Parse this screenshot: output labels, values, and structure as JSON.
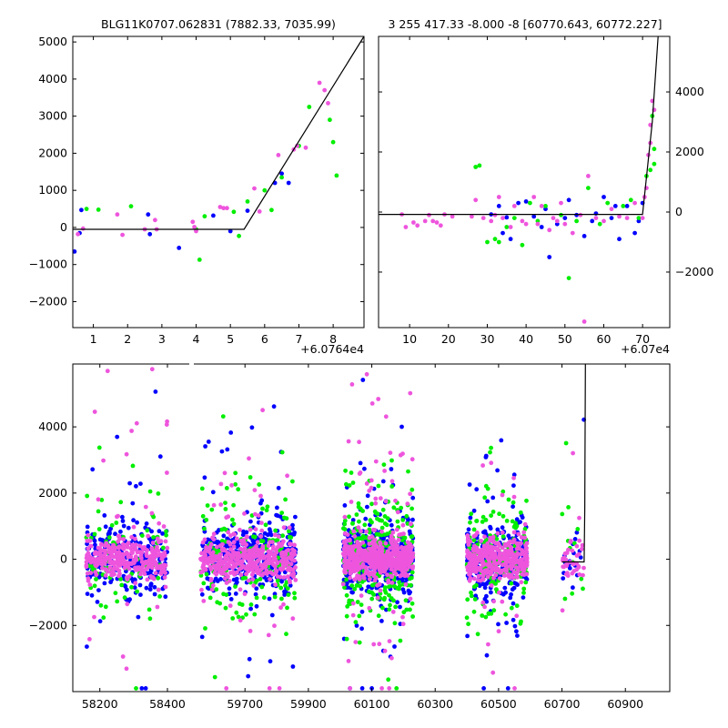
{
  "colors": {
    "blue": "#0000ff",
    "green": "#00ee00",
    "magenta": "#ee55dd",
    "line": "#000000"
  },
  "chart_data": [
    {
      "type": "scatter",
      "title": "BLG11K0707.062831 (7882.33, 7035.99)",
      "offset_label": "+6.0764e4",
      "xlim": [
        0.4,
        8.9
      ],
      "ylim": [
        -2700,
        5150
      ],
      "xticks": [
        "1",
        "2",
        "3",
        "4",
        "5",
        "6",
        "7",
        "8"
      ],
      "xtick_values": [
        1,
        2,
        3,
        4,
        5,
        6,
        7,
        8
      ],
      "yticks": [
        "5000",
        "4000",
        "3000",
        "2000",
        "1000",
        "0",
        "−1000",
        "−2000"
      ],
      "ytick_values": [
        5000,
        4000,
        3000,
        2000,
        1000,
        0,
        -1000,
        -2000
      ],
      "ytick_side": "left",
      "model_line": [
        [
          0.4,
          -50
        ],
        [
          5.4,
          -50
        ],
        [
          8.9,
          5150
        ]
      ],
      "series": [
        {
          "color": "blue",
          "points": [
            [
              0.45,
              -650
            ],
            [
              0.6,
              -150
            ],
            [
              0.65,
              470
            ],
            [
              2.6,
              350
            ],
            [
              2.65,
              -180
            ],
            [
              3.5,
              -550
            ],
            [
              4.5,
              320
            ],
            [
              5.0,
              -100
            ],
            [
              5.5,
              450
            ],
            [
              6.3,
              1200
            ],
            [
              6.5,
              1450
            ],
            [
              6.7,
              1200
            ]
          ]
        },
        {
          "color": "green",
          "points": [
            [
              0.8,
              500
            ],
            [
              1.15,
              480
            ],
            [
              2.1,
              570
            ],
            [
              4.0,
              -50
            ],
            [
              4.1,
              -870
            ],
            [
              4.25,
              300
            ],
            [
              5.25,
              -230
            ],
            [
              5.5,
              700
            ],
            [
              6.2,
              470
            ],
            [
              6.5,
              1350
            ],
            [
              7.0,
              2200
            ],
            [
              7.3,
              3250
            ],
            [
              7.9,
              2900
            ],
            [
              8.0,
              2300
            ],
            [
              8.1,
              1400
            ],
            [
              5.1,
              420
            ],
            [
              6.0,
              1000
            ]
          ]
        },
        {
          "color": "magenta",
          "points": [
            [
              0.55,
              -180
            ],
            [
              0.7,
              -30
            ],
            [
              1.7,
              350
            ],
            [
              1.85,
              -200
            ],
            [
              2.5,
              -50
            ],
            [
              2.8,
              200
            ],
            [
              2.85,
              -50
            ],
            [
              3.9,
              150
            ],
            [
              3.95,
              10
            ],
            [
              4.0,
              -100
            ],
            [
              4.7,
              550
            ],
            [
              4.8,
              520
            ],
            [
              4.9,
              520
            ],
            [
              5.7,
              1050
            ],
            [
              5.85,
              430
            ],
            [
              6.4,
              1950
            ],
            [
              6.85,
              2100
            ],
            [
              6.95,
              2200
            ],
            [
              7.2,
              2150
            ],
            [
              7.6,
              3900
            ],
            [
              7.75,
              3700
            ],
            [
              7.85,
              3350
            ]
          ]
        }
      ]
    },
    {
      "type": "scatter",
      "title": "3 255 417.33 -8.000 -8 [60770.643, 60772.227]",
      "offset_label": "+6.07e4",
      "xlim": [
        2,
        77
      ],
      "ylim": [
        -3850,
        5850
      ],
      "xticks": [
        "10",
        "20",
        "30",
        "40",
        "50",
        "60",
        "70"
      ],
      "xtick_values": [
        10,
        20,
        30,
        40,
        50,
        60,
        70
      ],
      "yticks": [
        "4000",
        "2000",
        "0",
        "−2000"
      ],
      "ytick_values": [
        4000,
        2000,
        0,
        -2000
      ],
      "ytick_side": "right",
      "model_line": [
        [
          2,
          -80
        ],
        [
          70,
          -80
        ],
        [
          72.5,
          3000
        ],
        [
          74,
          5850
        ]
      ],
      "series": [
        {
          "color": "blue",
          "points": [
            [
              31,
              -80
            ],
            [
              34,
              -700
            ],
            [
              35,
              -180
            ],
            [
              36,
              -900
            ],
            [
              38,
              300
            ],
            [
              40,
              350
            ],
            [
              42,
              -150
            ],
            [
              44,
              -500
            ],
            [
              46,
              -1500
            ],
            [
              48,
              -400
            ],
            [
              50,
              -200
            ],
            [
              51,
              400
            ],
            [
              53,
              -100
            ],
            [
              55,
              -800
            ],
            [
              57,
              -300
            ],
            [
              60,
              500
            ],
            [
              62,
              -200
            ],
            [
              64,
              -900
            ],
            [
              66,
              200
            ],
            [
              68,
              -700
            ],
            [
              70,
              300
            ],
            [
              33,
              200
            ],
            [
              45,
              100
            ],
            [
              58,
              -50
            ],
            [
              63,
              200
            ],
            [
              69,
              -300
            ]
          ]
        },
        {
          "color": "green",
          "points": [
            [
              27,
              1500
            ],
            [
              28,
              1550
            ],
            [
              30,
              -1000
            ],
            [
              32,
              -900
            ],
            [
              33,
              -1000
            ],
            [
              35,
              -500
            ],
            [
              37,
              -200
            ],
            [
              39,
              -1100
            ],
            [
              41,
              300
            ],
            [
              43,
              -300
            ],
            [
              45,
              200
            ],
            [
              49,
              -100
            ],
            [
              51,
              -2200
            ],
            [
              53,
              -300
            ],
            [
              56,
              800
            ],
            [
              59,
              -400
            ],
            [
              61,
              300
            ],
            [
              65,
              200
            ],
            [
              67,
              400
            ],
            [
              69,
              -200
            ],
            [
              71,
              1200
            ],
            [
              72,
              1400
            ],
            [
              73,
              1600
            ],
            [
              72.5,
              3200
            ],
            [
              73,
              2100
            ]
          ]
        },
        {
          "color": "magenta",
          "points": [
            [
              8,
              -80
            ],
            [
              9,
              -500
            ],
            [
              11,
              -350
            ],
            [
              12,
              -450
            ],
            [
              14,
              -300
            ],
            [
              15,
              -100
            ],
            [
              16,
              -300
            ],
            [
              17,
              -350
            ],
            [
              18,
              -450
            ],
            [
              19,
              -80
            ],
            [
              21,
              -150
            ],
            [
              26,
              -150
            ],
            [
              27,
              400
            ],
            [
              29,
              -200
            ],
            [
              31,
              -300
            ],
            [
              32,
              -100
            ],
            [
              33,
              500
            ],
            [
              34,
              -200
            ],
            [
              36,
              -500
            ],
            [
              37,
              200
            ],
            [
              39,
              -300
            ],
            [
              40,
              -400
            ],
            [
              42,
              500
            ],
            [
              43,
              -400
            ],
            [
              44,
              200
            ],
            [
              46,
              -600
            ],
            [
              47,
              -200
            ],
            [
              48,
              -300
            ],
            [
              49,
              300
            ],
            [
              50,
              -400
            ],
            [
              52,
              -700
            ],
            [
              54,
              -100
            ],
            [
              55,
              -3650
            ],
            [
              56,
              1200
            ],
            [
              58,
              -200
            ],
            [
              60,
              -300
            ],
            [
              62,
              100
            ],
            [
              64,
              -150
            ],
            [
              66,
              -200
            ],
            [
              68,
              300
            ],
            [
              70,
              -200
            ],
            [
              71,
              800
            ],
            [
              72,
              2300
            ],
            [
              72.5,
              3700
            ],
            [
              73,
              3400
            ],
            [
              72,
              2900
            ],
            [
              71.5,
              1900
            ],
            [
              70.5,
              500
            ]
          ]
        }
      ]
    },
    {
      "type": "scatter",
      "title": "",
      "xlim": [
        58120,
        61040
      ],
      "ylim": [
        -4000,
        5900
      ],
      "xticks": [
        "58200",
        "58400",
        "59700",
        "59900",
        "60100",
        "60300",
        "60500",
        "60700",
        "60900"
      ],
      "yticks": [
        "4000",
        "2000",
        "0",
        "−2000"
      ],
      "ytick_values": [
        4000,
        2000,
        0,
        -2000
      ],
      "ytick_side": "left",
      "broken_axis": true,
      "segments": [
        {
          "data_range": [
            58120,
            58470
          ],
          "ticks": [
            58200,
            58400
          ],
          "tick_labels": [
            "58200",
            "58400"
          ]
        },
        {
          "data_range": [
            59530,
            61040
          ],
          "ticks": [
            59700,
            59900,
            60100,
            60300,
            60500,
            60700,
            60900
          ],
          "tick_labels": [
            "59700",
            "59900",
            "60100",
            "60300",
            "60500",
            "60700",
            "60900"
          ]
        }
      ],
      "seasons": [
        [
          58160,
          58400
        ],
        [
          59560,
          59860
        ],
        [
          60010,
          60230
        ],
        [
          60400,
          60590
        ],
        [
          60700,
          60770
        ]
      ],
      "model_line": [
        [
          60700,
          -80
        ],
        [
          60770,
          -80
        ],
        [
          60772,
          1500
        ],
        [
          60774,
          5900
        ]
      ],
      "series": [
        {
          "color": "blue",
          "n_per_season": [
            260,
            380,
            480,
            340,
            18
          ],
          "spread": 500
        },
        {
          "color": "green",
          "n_per_season": [
            90,
            160,
            260,
            150,
            12
          ],
          "spread": 900
        },
        {
          "color": "magenta",
          "n_per_season": [
            320,
            420,
            560,
            360,
            40
          ],
          "spread": 300
        }
      ]
    }
  ]
}
